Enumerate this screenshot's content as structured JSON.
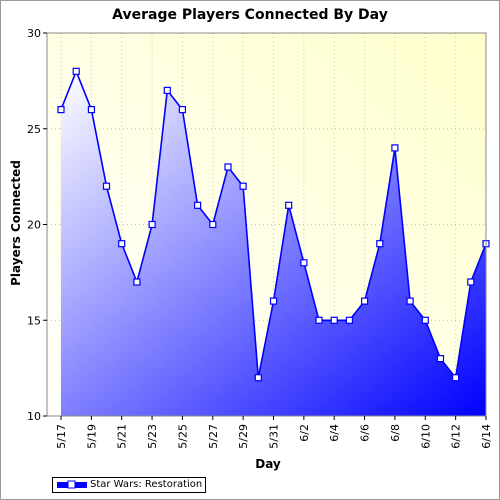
{
  "chart_data": {
    "type": "area",
    "title": "Average Players Connected By Day",
    "xlabel": "Day",
    "ylabel": "Players Connected",
    "ylim": [
      10,
      30
    ],
    "yticks": [
      10,
      15,
      20,
      25,
      30
    ],
    "grid": true,
    "legend_position": "bottom-left",
    "x": [
      "5/17",
      "5/18",
      "5/19",
      "5/20",
      "5/21",
      "5/22",
      "5/23",
      "5/24",
      "5/25",
      "5/26",
      "5/27",
      "5/28",
      "5/29",
      "5/30",
      "5/31",
      "6/1",
      "6/2",
      "6/3",
      "6/4",
      "6/5",
      "6/6",
      "6/7",
      "6/8",
      "6/9",
      "6/10",
      "6/11",
      "6/12",
      "6/13",
      "6/14"
    ],
    "xticks": [
      "5/17",
      "5/19",
      "5/21",
      "5/23",
      "5/25",
      "5/27",
      "5/29",
      "5/31",
      "6/2",
      "6/4",
      "6/6",
      "6/8",
      "6/10",
      "6/12",
      "6/14"
    ],
    "series": [
      {
        "name": "Star Wars: Restoration",
        "values": [
          26,
          28,
          26,
          22,
          19,
          17,
          20,
          27,
          26,
          21,
          20,
          23,
          22,
          12,
          16,
          21,
          18,
          15,
          15,
          15,
          16,
          19,
          24,
          16,
          15,
          13,
          12,
          17,
          19
        ],
        "color": "#0000ff"
      }
    ],
    "colors": {
      "plot_background_start": "#ffffff",
      "plot_background_end": "#ffffcc",
      "area_start": "#ffffff",
      "area_end": "#0000ff",
      "line": "#0000ff"
    }
  }
}
